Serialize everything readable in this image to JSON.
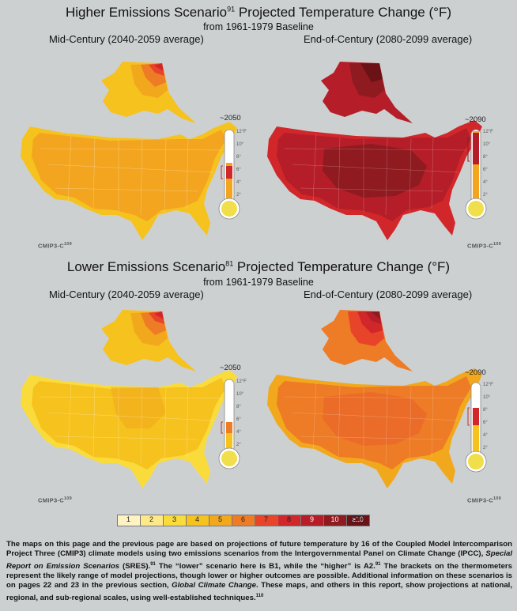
{
  "top_section": {
    "title_main": "Higher Emissions Scenario",
    "title_ref": "91",
    "title_rest": " Projected Temperature Change (°F)",
    "subtitle": "from 1961-1979 Baseline",
    "left_period": "Mid-Century (2040-2059 average)",
    "right_period": "End-of-Century (2080-2099 average)",
    "left_year": "~2050",
    "right_year": "~2090",
    "source_left": "CMIP3-C",
    "source_right": "CMIP3-C",
    "source_ref": "109"
  },
  "bottom_section": {
    "title_main": "Lower Emissions Scenario",
    "title_ref": "81",
    "title_rest": " Projected Temperature Change (°F)",
    "subtitle": "from 1961-1979 Baseline",
    "left_period": "Mid-Century (2040-2059 average)",
    "right_period": "End-of-Century (2080-2099 average)",
    "left_year": "~2050",
    "right_year": "~2090",
    "source_left": "CMIP3-C",
    "source_right": "CMIP3-C",
    "source_ref": "109"
  },
  "thermometer_ticks": [
    "12°F",
    "10°",
    "8°",
    "6°",
    "4°",
    "2°"
  ],
  "legend": {
    "labels": [
      "1",
      "2",
      "3",
      "4",
      "5",
      "6",
      "7",
      "8",
      "9",
      "10",
      "≥10"
    ],
    "colors": [
      "#fff3c4",
      "#fde98a",
      "#f9dc3c",
      "#f6c21e",
      "#f2a81c",
      "#ee7b25",
      "#e8442a",
      "#d1272b",
      "#b51e28",
      "#8f1a20",
      "#6b1217"
    ],
    "unit": "(°F)"
  },
  "map_colors": {
    "top_left_conus": "#f3a51f",
    "top_left_coast": "#f6c21e",
    "top_left_alaska": [
      "#f6c21e",
      "#f2a81c",
      "#ee7b25",
      "#e8442a",
      "#d1272b"
    ],
    "top_right_conus": "#b51e28",
    "top_right_core": "#8f1a20",
    "top_right_coast": "#d1272b",
    "top_right_alaska": [
      "#b51e28",
      "#8f1a20",
      "#6b1217"
    ],
    "bottom_left_conus": "#f6c21e",
    "bottom_left_coast": "#f9dc3c",
    "bottom_left_mid": "#f2a81c",
    "bottom_left_alaska": [
      "#f6c21e",
      "#f2a81c",
      "#ee7b25",
      "#e8442a",
      "#d1272b"
    ],
    "bottom_right_conus": "#ee7b25",
    "bottom_right_coast": "#f2a81c",
    "bottom_right_core": "#e8662a",
    "bottom_right_alaska": [
      "#ee7b25",
      "#e8442a",
      "#d1272b",
      "#b51e28",
      "#8f1a20"
    ],
    "thermo_fill_low": "#f0df4a",
    "thermo_bracket": "#d1272b"
  },
  "caption": {
    "p1": "The maps on this page and the previous page are based on projections of future temperature by 16 of the Coupled Model Intercomparison Project Three (CMIP3) climate models using two emissions scenarios from the Intergovernmental Panel on Climate Change (IPCC), ",
    "italic1": "Special Report on Emission Scenarios",
    "p2": " (SRES).",
    "ref1": "91",
    "p3": " The “lower” scenario here is B1, while the “higher” is A2.",
    "ref2": "91",
    "p4": " The brackets on the thermometers represent the likely range of model projections, though lower or higher outcomes are possible. Additional information on these scenarios is on pages 22 and 23 in the previous section, ",
    "italic2": "Global Climate Change",
    "p5": ". These maps, and others in this report, show projections at national, regional, and sub-regional scales, using well-established techniques.",
    "ref3": "110"
  }
}
